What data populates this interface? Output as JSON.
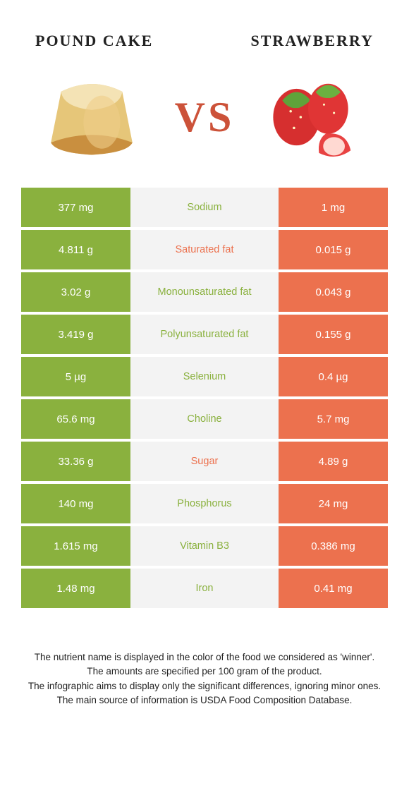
{
  "colors": {
    "left": "#8ab13e",
    "right": "#ec714e",
    "mid_bg": "#f3f3f3",
    "title_text": "#222222",
    "vs_color": "#cc5239"
  },
  "foods": {
    "left_title": "POUND CAKE",
    "right_title": "STRAWBERRY",
    "title_fontsize": 22,
    "vs_text": "VS"
  },
  "rows": [
    {
      "left": "377 mg",
      "label": "Sodium",
      "right": "1 mg",
      "winner": "left"
    },
    {
      "left": "4.811 g",
      "label": "Saturated fat",
      "right": "0.015 g",
      "winner": "right"
    },
    {
      "left": "3.02 g",
      "label": "Monounsaturated fat",
      "right": "0.043 g",
      "winner": "left"
    },
    {
      "left": "3.419 g",
      "label": "Polyunsaturated fat",
      "right": "0.155 g",
      "winner": "left"
    },
    {
      "left": "5 µg",
      "label": "Selenium",
      "right": "0.4 µg",
      "winner": "left"
    },
    {
      "left": "65.6 mg",
      "label": "Choline",
      "right": "5.7 mg",
      "winner": "left"
    },
    {
      "left": "33.36 g",
      "label": "Sugar",
      "right": "4.89 g",
      "winner": "right"
    },
    {
      "left": "140 mg",
      "label": "Phosphorus",
      "right": "24 mg",
      "winner": "left"
    },
    {
      "left": "1.615 mg",
      "label": "Vitamin B3",
      "right": "0.386 mg",
      "winner": "left"
    },
    {
      "left": "1.48 mg",
      "label": "Iron",
      "right": "0.41 mg",
      "winner": "left"
    }
  ],
  "footnotes": [
    "The nutrient name is displayed in the color of the food we considered as 'winner'.",
    "The amounts are specified per 100 gram of the product.",
    "The infographic aims to display only the significant differences, ignoring minor ones.",
    "The main source of information is USDA Food Composition Database."
  ]
}
